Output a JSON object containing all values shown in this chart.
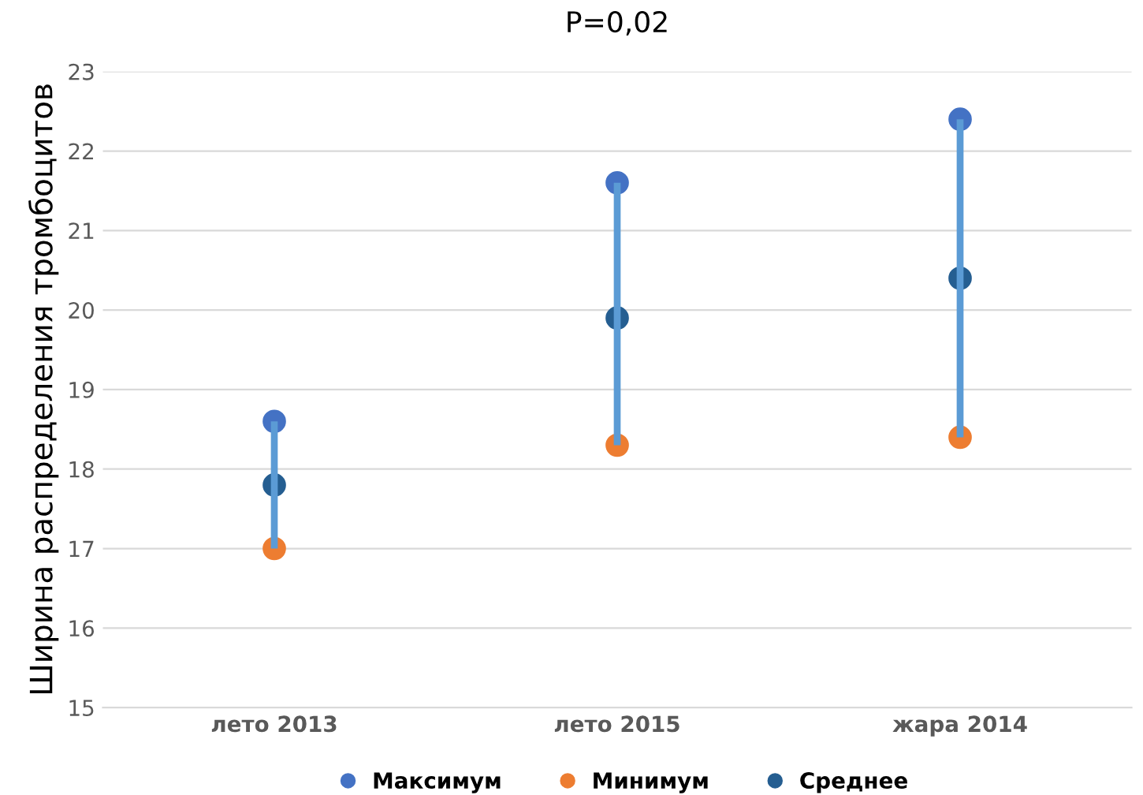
{
  "chart_data": {
    "type": "scatter",
    "title": "P=0,02",
    "ylabel": "Ширина распределения тромбоцитов",
    "categories": [
      "лето 2013",
      "лето 2015",
      "жара 2014"
    ],
    "series": [
      {
        "type": "bar",
        "color": "#5b9bd5",
        "base": [
          17.0,
          18.3,
          18.4
        ],
        "values": [
          1.6,
          3.3,
          4.0
        ]
      },
      {
        "name": "Максимум",
        "color": "#4472c4",
        "values": [
          18.6,
          21.6,
          22.4
        ]
      },
      {
        "name": "Минимум",
        "color": "#ed7d31",
        "values": [
          17.0,
          18.3,
          18.4
        ]
      },
      {
        "name": "Среднее",
        "color": "#255e91",
        "values": [
          17.8,
          19.9,
          20.4
        ]
      }
    ],
    "ylim": [
      15,
      23
    ],
    "yticks": [
      15,
      16,
      17,
      18,
      19,
      20,
      21,
      22,
      23
    ],
    "grid": "y",
    "legend": "bottom",
    "marker": "circle"
  }
}
